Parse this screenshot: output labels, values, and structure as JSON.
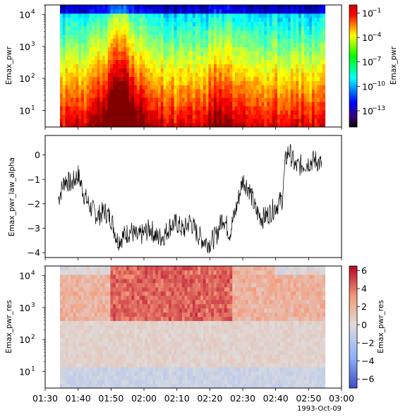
{
  "chart_data": [
    {
      "type": "heatmap",
      "title": "",
      "ylabel": "Emax_pwr",
      "xlabel": "",
      "yscale": "log",
      "ylim": [
        3,
        20000
      ],
      "yticks": [
        {
          "value": 10,
          "label": "10",
          "exp": "1"
        },
        {
          "value": 100,
          "label": "10",
          "exp": "2"
        },
        {
          "value": 1000,
          "label": "10",
          "exp": "3"
        },
        {
          "value": 10000,
          "label": "10",
          "exp": "4"
        }
      ],
      "colormap": "jet",
      "colorbar": {
        "label": "Emax_pwr",
        "scale": "log",
        "range": [
          1e-15,
          1.0
        ],
        "ticks": [
          {
            "value": 1e-13,
            "label": "10",
            "exp": "−13"
          },
          {
            "value": 1e-10,
            "label": "10",
            "exp": "−10"
          },
          {
            "value": 1e-07,
            "label": "10",
            "exp": "−7"
          },
          {
            "value": 0.0001,
            "label": "10",
            "exp": "−4"
          },
          {
            "value": 0.1,
            "label": "10",
            "exp": "−1"
          }
        ]
      }
    },
    {
      "type": "line",
      "title": "",
      "ylabel": "Emax_pwr_law_alpha",
      "xlabel": "",
      "ylim": [
        -4.2,
        0.8
      ],
      "yticks": [
        {
          "value": 0,
          "label": "0"
        },
        {
          "value": -1,
          "label": "−1"
        },
        {
          "value": -2,
          "label": "−2"
        },
        {
          "value": -3,
          "label": "−3"
        },
        {
          "value": -4,
          "label": "−4"
        }
      ],
      "series": [
        {
          "name": "Emax_pwr_law_alpha",
          "color": "#000000",
          "x": [
            "01:34",
            "01:36",
            "01:38",
            "01:40",
            "01:42",
            "01:44",
            "01:46",
            "01:48",
            "01:50",
            "01:52",
            "01:54",
            "01:56",
            "01:58",
            "02:00",
            "02:02",
            "02:04",
            "02:06",
            "02:08",
            "02:10",
            "02:12",
            "02:14",
            "02:16",
            "02:18",
            "02:20",
            "02:22",
            "02:24",
            "02:26",
            "02:28",
            "02:30",
            "02:32",
            "02:34",
            "02:36",
            "02:38",
            "02:40",
            "02:42",
            "02:43",
            "02:44",
            "02:46",
            "02:48",
            "02:50",
            "02:52",
            "02:54"
          ],
          "values": [
            -1.8,
            -1.0,
            -1.2,
            -0.8,
            -1.7,
            -2.2,
            -2.5,
            -2.3,
            -2.6,
            -3.5,
            -3.3,
            -3.1,
            -3.4,
            -3.2,
            -3.0,
            -3.4,
            -3.3,
            -2.9,
            -2.8,
            -3.1,
            -2.7,
            -3.2,
            -3.5,
            -3.6,
            -3.3,
            -2.5,
            -3.2,
            -2.2,
            -1.0,
            -1.4,
            -2.3,
            -2.6,
            -2.4,
            -2.1,
            -1.8,
            -0.2,
            0.2,
            -0.5,
            -0.4,
            -0.3,
            -0.2,
            -0.4
          ]
        }
      ]
    },
    {
      "type": "heatmap",
      "title": "",
      "ylabel": "Emax_pwr_res",
      "xlabel": "",
      "yscale": "log",
      "ylim": [
        3,
        20000
      ],
      "yticks": [
        {
          "value": 10,
          "label": "10",
          "exp": "1"
        },
        {
          "value": 100,
          "label": "10",
          "exp": "2"
        },
        {
          "value": 1000,
          "label": "10",
          "exp": "3"
        },
        {
          "value": 10000,
          "label": "10",
          "exp": "4"
        }
      ],
      "colormap": "coolwarm",
      "colorbar": {
        "label": "Emax_pwr_res",
        "scale": "linear",
        "range": [
          -7,
          6.5
        ],
        "ticks": [
          {
            "value": 6,
            "label": "6"
          },
          {
            "value": 4,
            "label": "4"
          },
          {
            "value": 2,
            "label": "2"
          },
          {
            "value": 0,
            "label": "0"
          },
          {
            "value": -2,
            "label": "−2"
          },
          {
            "value": -4,
            "label": "−4"
          },
          {
            "value": -6,
            "label": "−6"
          }
        ]
      }
    }
  ],
  "x_axis": {
    "range": [
      "01:30",
      "03:00"
    ],
    "ticks": [
      "01:30",
      "01:40",
      "01:50",
      "02:00",
      "02:10",
      "02:20",
      "02:30",
      "02:40",
      "02:50",
      "03:00"
    ],
    "date_label": "1993-Oct-09"
  }
}
